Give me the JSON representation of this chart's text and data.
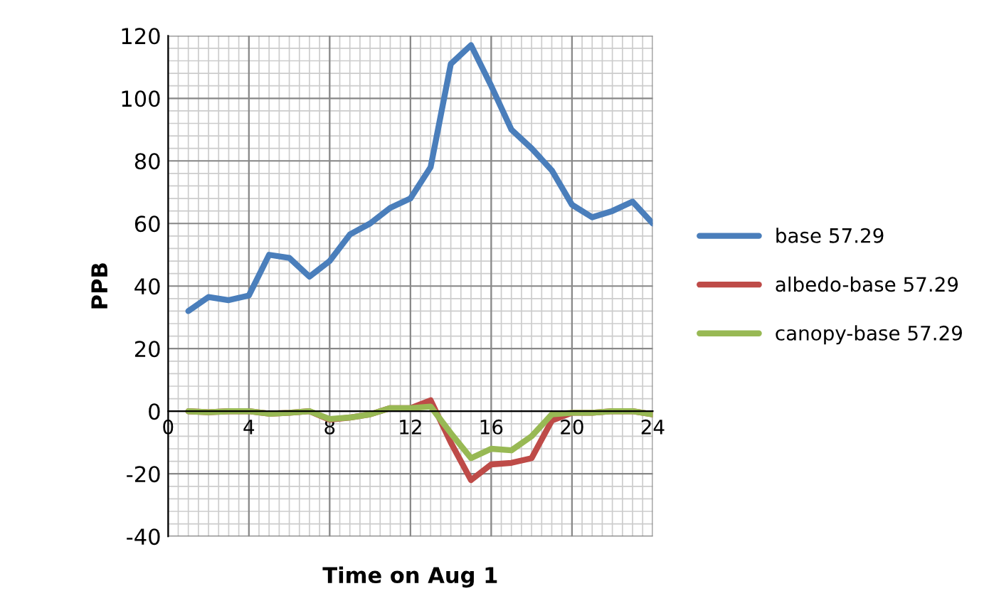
{
  "chart_data": {
    "type": "line",
    "xlabel": "Time on Aug 1",
    "ylabel": "PPB",
    "x": [
      1,
      2,
      3,
      4,
      5,
      6,
      7,
      8,
      9,
      10,
      11,
      12,
      13,
      14,
      15,
      16,
      17,
      18,
      19,
      20,
      21,
      22,
      23,
      24
    ],
    "series": [
      {
        "name": "base 57.29",
        "color": "#4a7ebb",
        "values": [
          32,
          36.5,
          35.5,
          37,
          50,
          49,
          43,
          48,
          56.5,
          60,
          65,
          68,
          78,
          111,
          117,
          104,
          90,
          84,
          77,
          66,
          62,
          64,
          67,
          60
        ]
      },
      {
        "name": "albedo-base 57.29",
        "color": "#be4b48",
        "values": [
          0,
          -0.3,
          0,
          0,
          -0.8,
          -0.5,
          0,
          -2.7,
          -2,
          -1,
          1,
          1,
          3.5,
          -10,
          -22,
          -17,
          -16.5,
          -15,
          -3,
          -0.5,
          -0.5,
          0,
          0,
          -1
        ]
      },
      {
        "name": "canopy-base 57.29",
        "color": "#98b954",
        "values": [
          0,
          -0.3,
          0,
          0,
          -0.8,
          -0.5,
          0,
          -2.5,
          -2,
          -1,
          1,
          1,
          1.5,
          -7,
          -15,
          -12,
          -12.5,
          -8,
          -1,
          -0.5,
          -0.5,
          0,
          0,
          -1
        ]
      }
    ],
    "xlim": [
      0,
      24
    ],
    "ylim": [
      -40,
      120
    ],
    "xticks": [
      0,
      4,
      8,
      12,
      16,
      20,
      24
    ],
    "yticks": [
      -40,
      -20,
      0,
      20,
      40,
      60,
      80,
      100,
      120
    ],
    "grid": true,
    "legend": "right",
    "marker": "none",
    "line_style": "solid"
  }
}
